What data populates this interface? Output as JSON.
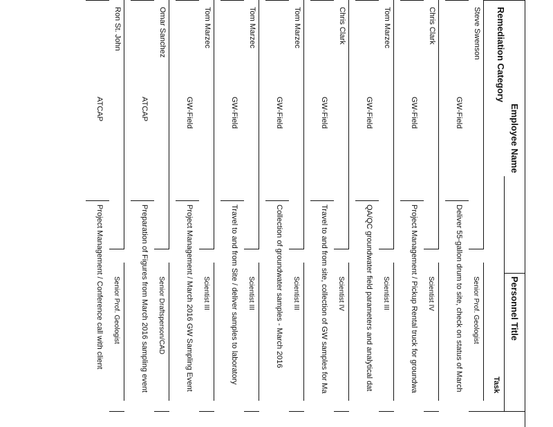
{
  "header": {
    "employee_name": "Employee Name",
    "personnel_title": "Personnel Title",
    "remediation_category": "Remediation Category",
    "task": "Task"
  },
  "rows": [
    {
      "name": "Steve Swenson",
      "title": "Senior Prof. Geologist",
      "category": "GW-Field",
      "task": "Deliver 55-gallon drum to site, check on status of March"
    },
    {
      "name": "Chris Clark",
      "title": "Scientist IV",
      "category": "GW-Field",
      "task": "Project Management / Pickup Rental truck for groundwa"
    },
    {
      "name": "Tom Marzec",
      "title": "Scientist III",
      "category": "GW-Field",
      "task": "QA/QC groundwater field parameters and analytical dat"
    },
    {
      "name": "Chris Clark",
      "title": "Scientist IV",
      "category": "GW-Field",
      "task": "Travel to and from site, collection of GW samples for Ma"
    },
    {
      "name": "Tom Marzec",
      "title": "Scientist III",
      "category": "GW-Field",
      "task": "Collection of groundwater samples - March 2016"
    },
    {
      "name": "Tom Marzec",
      "title": "Scientist III",
      "category": "GW-Field",
      "task": "Travel to and from Site / deliver samples to laboratory"
    },
    {
      "name": "Tom Marzec",
      "title": "Scientist III",
      "category": "GW-Field",
      "task": "Project Management / March 2016 GW Sampling Event"
    },
    {
      "name": "Omar Sanchez",
      "title": "Senior Draftsperson/CAD",
      "category": "ATCAP",
      "task": "Preparation of Figures from March 2016 sampling event"
    },
    {
      "name": "Ron St. John",
      "title": "Senior Prof. Geologist",
      "category": "ATCAP",
      "task": "Project Management / Conference call with client"
    }
  ]
}
